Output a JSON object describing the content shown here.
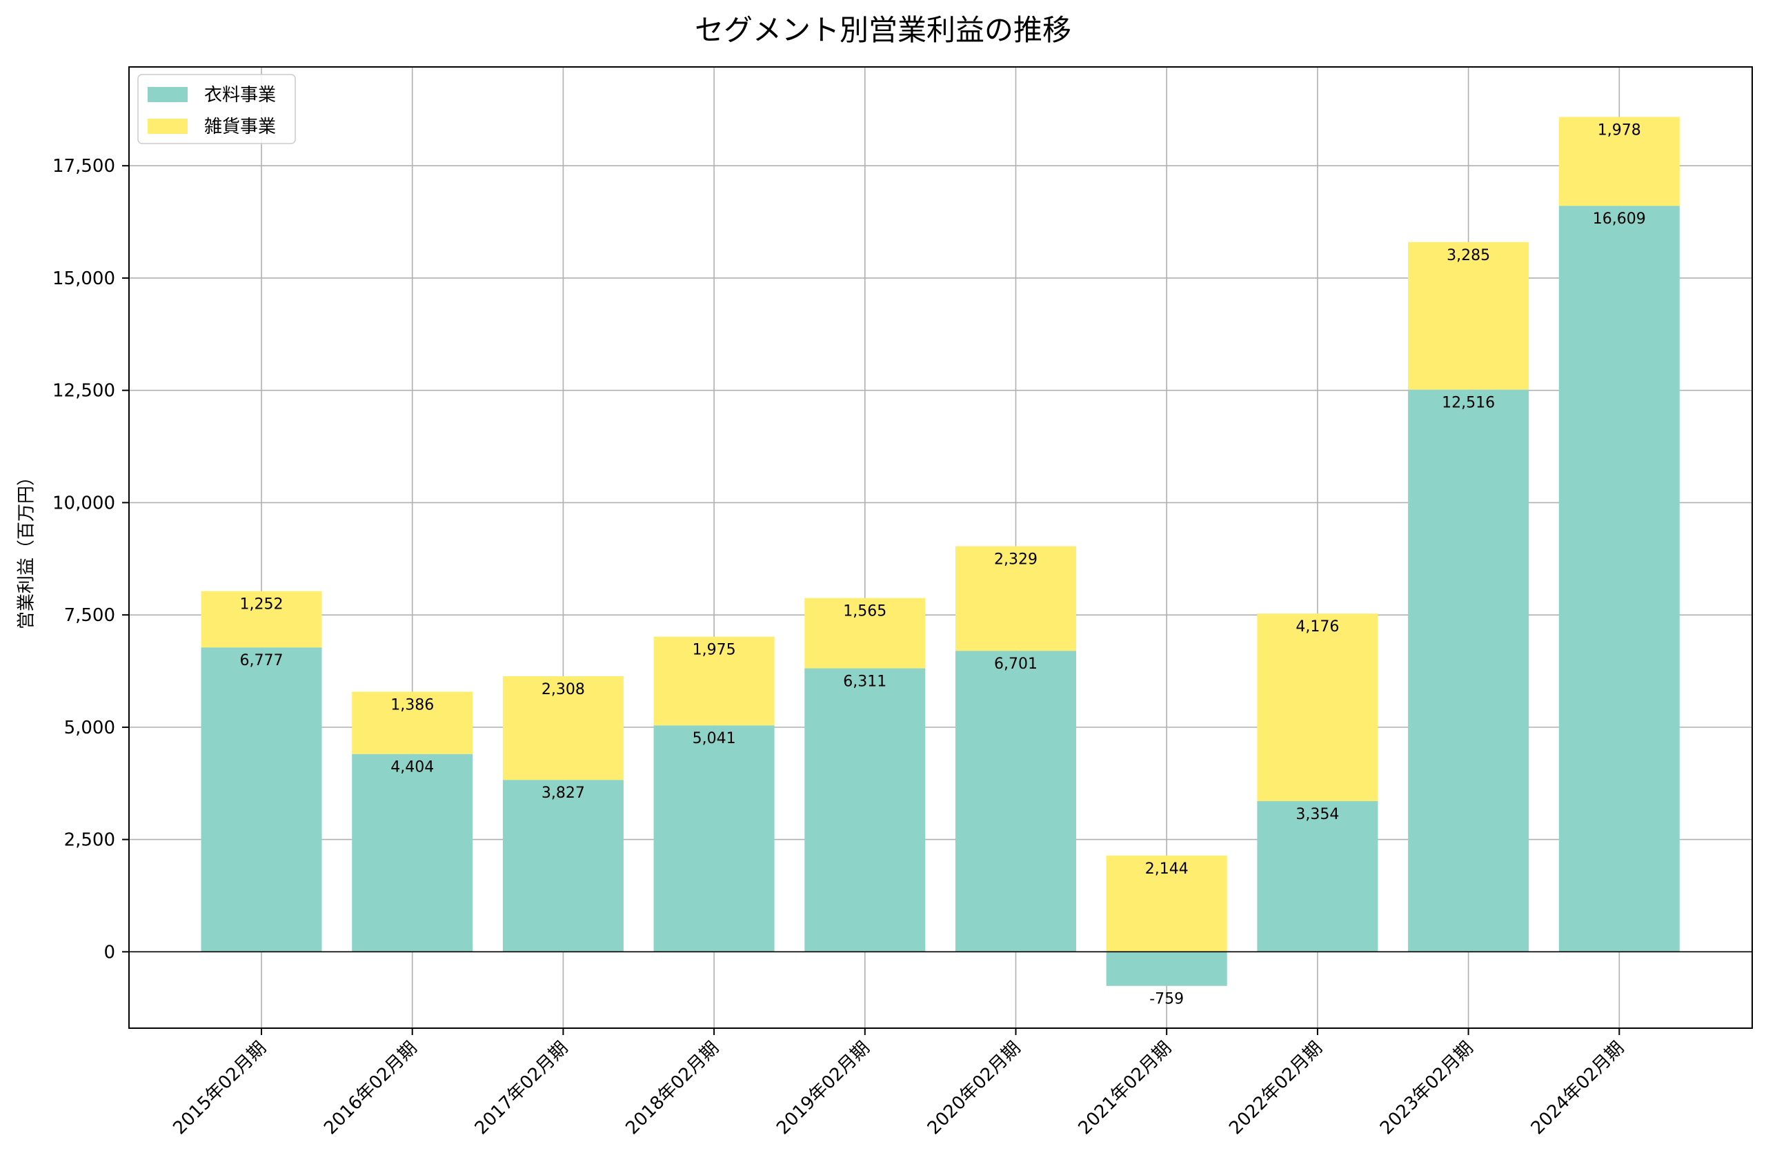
{
  "chart_data": {
    "type": "bar",
    "stacked": true,
    "title": "セグメント別営業利益の推移",
    "xlabel": "",
    "ylabel": "営業利益（百万円）",
    "categories": [
      "2015年02月期",
      "2016年02月期",
      "2017年02月期",
      "2018年02月期",
      "2019年02月期",
      "2020年02月期",
      "2021年02月期",
      "2022年02月期",
      "2023年02月期",
      "2024年02月期"
    ],
    "series": [
      {
        "name": "衣料事業",
        "color": "#8dd3c7",
        "values": [
          6777,
          4404,
          3827,
          5041,
          6311,
          6701,
          -759,
          3354,
          12516,
          16609
        ],
        "labels": [
          "6,777",
          "4,404",
          "3,827",
          "5,041",
          "6,311",
          "6,701",
          "-759",
          "3,354",
          "12,516",
          "16,609"
        ]
      },
      {
        "name": "雑貨事業",
        "color": "#ffed6f",
        "values": [
          1252,
          1386,
          2308,
          1975,
          1565,
          2329,
          2144,
          4176,
          3285,
          1978
        ],
        "labels": [
          "1,252",
          "1,386",
          "2,308",
          "1,975",
          "1,565",
          "2,329",
          "2,144",
          "4,176",
          "3,285",
          "1,978"
        ]
      }
    ],
    "ylim": [
      -1700,
      19700
    ],
    "yticks": [
      0,
      2500,
      5000,
      7500,
      10000,
      12500,
      15000,
      17500
    ],
    "ytick_labels": [
      "0",
      "2,500",
      "5,000",
      "7,500",
      "10,000",
      "12,500",
      "15,000",
      "17,500"
    ],
    "grid": true,
    "legend": "upper-left"
  }
}
